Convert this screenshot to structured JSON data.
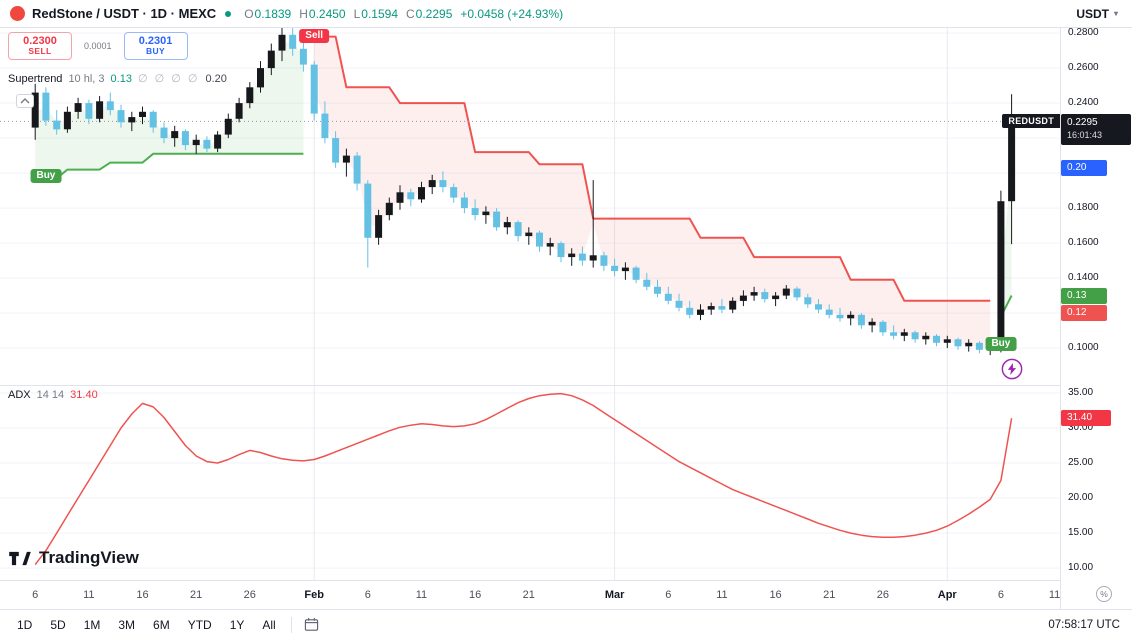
{
  "header": {
    "symbol_title": "RedStone / USDT · 1D · MEXC",
    "ohlc": {
      "o_label": "O",
      "o": "0.1839",
      "h_label": "H",
      "h": "0.2450",
      "l_label": "L",
      "l": "0.1594",
      "c_label": "C",
      "c": "0.2295",
      "change": "+0.0458 (+24.93%)"
    },
    "currency_selector": "USDT"
  },
  "order_panel": {
    "sell_price": "0.2300",
    "sell_label": "SELL",
    "spread": "0.0001",
    "buy_price": "0.2301",
    "buy_label": "BUY"
  },
  "legends": {
    "supertrend": {
      "name": "Supertrend",
      "params": "10 hl, 3",
      "value": "0.13",
      "empties": "∅ ∅ ∅ ∅",
      "value2": "0.20"
    },
    "adx": {
      "name": "ADX",
      "params": "14 14",
      "value": "31.40"
    }
  },
  "price_axis": {
    "ticks": [
      {
        "label": "0.2800",
        "value": 0.28
      },
      {
        "label": "0.2600",
        "value": 0.26
      },
      {
        "label": "0.2400",
        "value": 0.24
      },
      {
        "label": "0.2200",
        "value": 0.22
      },
      {
        "label": "0.2000",
        "value": 0.2
      },
      {
        "label": "0.1800",
        "value": 0.18
      },
      {
        "label": "0.1600",
        "value": 0.16
      },
      {
        "label": "0.1400",
        "value": 0.14
      },
      {
        "label": "0.1200",
        "value": 0.12
      },
      {
        "label": "0.1000",
        "value": 0.1
      }
    ]
  },
  "adx_axis": {
    "ticks": [
      {
        "label": "35.00",
        "value": 35
      },
      {
        "label": "30.00",
        "value": 30
      },
      {
        "label": "25.00",
        "value": 25
      },
      {
        "label": "20.00",
        "value": 20
      },
      {
        "label": "15.00",
        "value": 15
      },
      {
        "label": "10.00",
        "value": 10
      }
    ]
  },
  "badges": {
    "symbol_tag": "REDUSDT",
    "last_price": {
      "text": "0.2295",
      "countdown": "16:01:43",
      "value": 0.2295,
      "bg": "#15181e"
    },
    "alert": {
      "text": "0.20",
      "value": 0.2029,
      "bg": "#2962ff"
    },
    "st_up": {
      "text": "0.13",
      "value": 0.13,
      "bg": "#43a047"
    },
    "st_down": {
      "text": "0.12",
      "value": 0.12,
      "bg": "#ef5350"
    },
    "adx": {
      "text": "31.40",
      "value": 31.4,
      "bg": "#f23645"
    }
  },
  "time_axis": {
    "labels": [
      {
        "label": "6",
        "index": 0
      },
      {
        "label": "11",
        "index": 5
      },
      {
        "label": "16",
        "index": 10
      },
      {
        "label": "21",
        "index": 15
      },
      {
        "label": "26",
        "index": 20
      },
      {
        "label": "Feb",
        "index": 26,
        "month": true
      },
      {
        "label": "6",
        "index": 31
      },
      {
        "label": "11",
        "index": 36
      },
      {
        "label": "16",
        "index": 41
      },
      {
        "label": "21",
        "index": 46
      },
      {
        "label": "Mar",
        "index": 54,
        "month": true
      },
      {
        "label": "6",
        "index": 59
      },
      {
        "label": "11",
        "index": 64
      },
      {
        "label": "16",
        "index": 69
      },
      {
        "label": "21",
        "index": 74
      },
      {
        "label": "26",
        "index": 79
      },
      {
        "label": "Apr",
        "index": 85,
        "month": true
      },
      {
        "label": "6",
        "index": 90
      },
      {
        "label": "11",
        "index": 95
      }
    ]
  },
  "toolbar": {
    "ranges": [
      "1D",
      "5D",
      "1M",
      "3M",
      "6M",
      "YTD",
      "1Y",
      "All"
    ],
    "utc_time": "07:58:17 UTC"
  },
  "watermark": "TradingView",
  "icons": {
    "currency_chevron": "▾",
    "corner_glyph": "%"
  },
  "colors": {
    "accent_blue": "#2962ff",
    "sell_red": "#f23645",
    "buy_green": "#43a047",
    "header_green": "#089981",
    "up_candle": "#17181c",
    "down_candle": "#65c1e3",
    "st_up_line": "#4caf50",
    "st_up_fill": "rgba(76,175,80,0.10)",
    "st_down_line": "#ef5350",
    "st_down_fill": "rgba(239,83,80,0.09)",
    "adx_line": "#ef5350",
    "grid": "#f0f3fa",
    "month_grid": "#e8eaef",
    "badge_black": "#15181e",
    "text_dark": "#131722",
    "text_gray": "#787b86"
  },
  "chart_data": {
    "type": "candlestick",
    "title": "RedStone / USDT 1D on MEXC with Supertrend (10 hl, 3) and ADX (14 14)",
    "symbol": "REDUSDT",
    "interval": "1D",
    "exchange": "MEXC",
    "x0": 35.2,
    "dx": 10.73,
    "month_gridline_indices": [
      26,
      54,
      85
    ],
    "price_pane": {
      "ylim": [
        0.0789,
        0.2829
      ],
      "last_close": 0.2295,
      "candles": [
        [
          0.226,
          0.251,
          0.219,
          0.246
        ],
        [
          0.246,
          0.249,
          0.227,
          0.23
        ],
        [
          0.23,
          0.236,
          0.222,
          0.225
        ],
        [
          0.225,
          0.238,
          0.223,
          0.235
        ],
        [
          0.235,
          0.243,
          0.231,
          0.24
        ],
        [
          0.24,
          0.242,
          0.228,
          0.231
        ],
        [
          0.231,
          0.244,
          0.229,
          0.241
        ],
        [
          0.241,
          0.246,
          0.233,
          0.236
        ],
        [
          0.236,
          0.239,
          0.226,
          0.229
        ],
        [
          0.229,
          0.235,
          0.224,
          0.232
        ],
        [
          0.232,
          0.238,
          0.228,
          0.235
        ],
        [
          0.235,
          0.236,
          0.223,
          0.226
        ],
        [
          0.226,
          0.229,
          0.217,
          0.22
        ],
        [
          0.22,
          0.227,
          0.215,
          0.224
        ],
        [
          0.224,
          0.225,
          0.213,
          0.216
        ],
        [
          0.216,
          0.222,
          0.211,
          0.219
        ],
        [
          0.219,
          0.221,
          0.212,
          0.214
        ],
        [
          0.214,
          0.224,
          0.212,
          0.222
        ],
        [
          0.222,
          0.234,
          0.22,
          0.231
        ],
        [
          0.231,
          0.243,
          0.229,
          0.24
        ],
        [
          0.24,
          0.252,
          0.237,
          0.249
        ],
        [
          0.249,
          0.264,
          0.246,
          0.26
        ],
        [
          0.26,
          0.274,
          0.256,
          0.27
        ],
        [
          0.27,
          0.285,
          0.264,
          0.279
        ],
        [
          0.279,
          0.283,
          0.267,
          0.271
        ],
        [
          0.271,
          0.276,
          0.258,
          0.262
        ],
        [
          0.262,
          0.264,
          0.23,
          0.234
        ],
        [
          0.234,
          0.241,
          0.217,
          0.22
        ],
        [
          0.22,
          0.224,
          0.203,
          0.206
        ],
        [
          0.206,
          0.214,
          0.198,
          0.21
        ],
        [
          0.21,
          0.212,
          0.19,
          0.194
        ],
        [
          0.194,
          0.196,
          0.146,
          0.163
        ],
        [
          0.163,
          0.179,
          0.159,
          0.176
        ],
        [
          0.176,
          0.186,
          0.173,
          0.183
        ],
        [
          0.183,
          0.193,
          0.179,
          0.189
        ],
        [
          0.189,
          0.191,
          0.181,
          0.185
        ],
        [
          0.185,
          0.195,
          0.183,
          0.192
        ],
        [
          0.192,
          0.199,
          0.188,
          0.196
        ],
        [
          0.196,
          0.201,
          0.189,
          0.192
        ],
        [
          0.192,
          0.194,
          0.183,
          0.186
        ],
        [
          0.186,
          0.189,
          0.177,
          0.18
        ],
        [
          0.18,
          0.185,
          0.173,
          0.176
        ],
        [
          0.176,
          0.181,
          0.171,
          0.178
        ],
        [
          0.178,
          0.18,
          0.167,
          0.169
        ],
        [
          0.169,
          0.175,
          0.165,
          0.172
        ],
        [
          0.172,
          0.173,
          0.161,
          0.164
        ],
        [
          0.164,
          0.169,
          0.159,
          0.166
        ],
        [
          0.166,
          0.167,
          0.155,
          0.158
        ],
        [
          0.158,
          0.163,
          0.153,
          0.16
        ],
        [
          0.16,
          0.161,
          0.149,
          0.152
        ],
        [
          0.152,
          0.157,
          0.147,
          0.154
        ],
        [
          0.154,
          0.158,
          0.147,
          0.15
        ],
        [
          0.15,
          0.196,
          0.146,
          0.153
        ],
        [
          0.153,
          0.155,
          0.144,
          0.147
        ],
        [
          0.147,
          0.151,
          0.141,
          0.144
        ],
        [
          0.144,
          0.149,
          0.139,
          0.146
        ],
        [
          0.146,
          0.147,
          0.137,
          0.139
        ],
        [
          0.139,
          0.143,
          0.133,
          0.135
        ],
        [
          0.135,
          0.139,
          0.129,
          0.131
        ],
        [
          0.131,
          0.135,
          0.125,
          0.127
        ],
        [
          0.127,
          0.131,
          0.121,
          0.123
        ],
        [
          0.123,
          0.127,
          0.117,
          0.119
        ],
        [
          0.119,
          0.125,
          0.116,
          0.122
        ],
        [
          0.122,
          0.126,
          0.119,
          0.124
        ],
        [
          0.124,
          0.128,
          0.12,
          0.122
        ],
        [
          0.122,
          0.129,
          0.12,
          0.127
        ],
        [
          0.127,
          0.133,
          0.124,
          0.13
        ],
        [
          0.13,
          0.135,
          0.127,
          0.132
        ],
        [
          0.132,
          0.134,
          0.126,
          0.128
        ],
        [
          0.128,
          0.132,
          0.124,
          0.13
        ],
        [
          0.13,
          0.136,
          0.128,
          0.134
        ],
        [
          0.134,
          0.135,
          0.127,
          0.129
        ],
        [
          0.129,
          0.131,
          0.123,
          0.125
        ],
        [
          0.125,
          0.128,
          0.12,
          0.122
        ],
        [
          0.122,
          0.125,
          0.117,
          0.119
        ],
        [
          0.119,
          0.123,
          0.115,
          0.117
        ],
        [
          0.117,
          0.121,
          0.113,
          0.119
        ],
        [
          0.119,
          0.12,
          0.111,
          0.113
        ],
        [
          0.113,
          0.117,
          0.109,
          0.115
        ],
        [
          0.115,
          0.116,
          0.107,
          0.109
        ],
        [
          0.109,
          0.113,
          0.105,
          0.107
        ],
        [
          0.107,
          0.111,
          0.104,
          0.109
        ],
        [
          0.109,
          0.11,
          0.103,
          0.105
        ],
        [
          0.105,
          0.109,
          0.102,
          0.107
        ],
        [
          0.107,
          0.108,
          0.101,
          0.103
        ],
        [
          0.103,
          0.107,
          0.1,
          0.105
        ],
        [
          0.105,
          0.106,
          0.099,
          0.101
        ],
        [
          0.101,
          0.105,
          0.098,
          0.103
        ],
        [
          0.103,
          0.104,
          0.097,
          0.099
        ],
        [
          0.099,
          0.103,
          0.096,
          0.101
        ],
        [
          0.101,
          0.19,
          0.0975,
          0.1839
        ],
        [
          0.1839,
          0.245,
          0.1594,
          0.2295
        ]
      ],
      "supertrend": {
        "segments": [
          {
            "trend": "up",
            "start": 0,
            "values": [
              0.197,
              0.197,
              0.197,
              0.202,
              0.202,
              0.202,
              0.202,
              0.206,
              0.206,
              0.206,
              0.206,
              0.211,
              0.211,
              0.211,
              0.211,
              0.211,
              0.211,
              0.211,
              0.211,
              0.211,
              0.211,
              0.211,
              0.211,
              0.211,
              0.211,
              0.211
            ]
          },
          {
            "trend": "down",
            "start": 26,
            "values": [
              0.278,
              0.278,
              0.278,
              0.249,
              0.249,
              0.249,
              0.249,
              0.249,
              0.24,
              0.24,
              0.24,
              0.24,
              0.24,
              0.24,
              0.24,
              0.212,
              0.212,
              0.212,
              0.212,
              0.212,
              0.212,
              0.205,
              0.205,
              0.205,
              0.205,
              0.205,
              0.174,
              0.174,
              0.174,
              0.174,
              0.174,
              0.174,
              0.174,
              0.174,
              0.174,
              0.174,
              0.163,
              0.163,
              0.163,
              0.163,
              0.163,
              0.152,
              0.152,
              0.152,
              0.152,
              0.152,
              0.152,
              0.152,
              0.152,
              0.152,
              0.139,
              0.139,
              0.139,
              0.139,
              0.139,
              0.127,
              0.127,
              0.127,
              0.127,
              0.127,
              0.127,
              0.127,
              0.127,
              0.127
            ]
          },
          {
            "trend": "up",
            "start": 90,
            "values": [
              0.118,
              0.13
            ]
          }
        ]
      },
      "signals": [
        {
          "type": "buy",
          "label": "Buy",
          "index": 1,
          "anchor_price": 0.2023
        },
        {
          "type": "sell",
          "label": "Sell",
          "index": 26,
          "anchor_price": 0.2875
        },
        {
          "type": "buy",
          "label": "Buy",
          "index": 90,
          "anchor_price": 0.1063
        }
      ]
    },
    "adx_pane": {
      "ylim": [
        8.3,
        35.99
      ],
      "series": [
        {
          "name": "ADX",
          "values": [
            10.5,
            12.5,
            15.0,
            17.5,
            20.0,
            22.5,
            25.0,
            27.5,
            30.0,
            32.0,
            33.5,
            33.0,
            31.5,
            29.5,
            27.5,
            26.0,
            25.2,
            25.0,
            25.5,
            26.2,
            26.8,
            26.5,
            26.0,
            25.6,
            25.4,
            25.3,
            25.5,
            26.0,
            26.6,
            27.2,
            27.8,
            28.4,
            29.0,
            29.6,
            30.1,
            30.4,
            30.6,
            30.5,
            30.3,
            30.2,
            30.3,
            30.6,
            31.2,
            32.0,
            32.8,
            33.6,
            34.2,
            34.6,
            34.8,
            34.9,
            34.6,
            34.0,
            33.2,
            32.2,
            31.2,
            30.2,
            29.2,
            28.2,
            27.2,
            26.2,
            25.2,
            24.4,
            23.6,
            22.8,
            22.0,
            21.2,
            20.6,
            20.0,
            19.4,
            18.8,
            18.2,
            17.6,
            17.0,
            16.4,
            15.9,
            15.4,
            15.0,
            14.7,
            14.5,
            14.4,
            14.4,
            14.5,
            14.7,
            15.0,
            15.4,
            16.0,
            16.8,
            17.7,
            18.7,
            19.8,
            22.5,
            31.4
          ]
        }
      ]
    }
  }
}
